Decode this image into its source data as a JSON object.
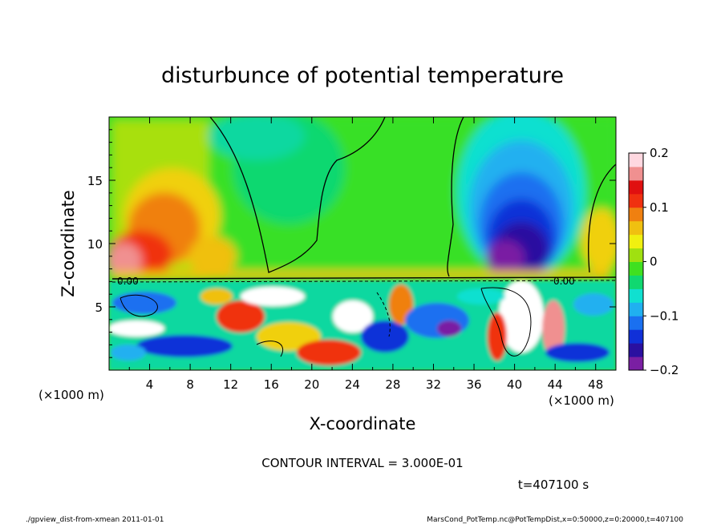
{
  "chart_data": {
    "type": "heatmap",
    "title": "disturbunce of potential temperature",
    "xlabel": "X-coordinate",
    "ylabel": "Z-coordinate",
    "x_unit_label": "(×1000 m)",
    "z_unit_label": "(×1000 m)",
    "xlim": [
      0,
      50
    ],
    "ylim": [
      0,
      20
    ],
    "x_ticks": [
      4,
      8,
      12,
      16,
      20,
      24,
      28,
      32,
      36,
      40,
      44,
      48
    ],
    "y_ticks": [
      5,
      10,
      15
    ],
    "colorbar": {
      "range": [
        -0.2,
        0.2
      ],
      "tick_labels": [
        "0.2",
        "0.1",
        "0",
        "−0.1",
        "−0.2"
      ],
      "tick_values": [
        0.2,
        0.1,
        0,
        -0.1,
        -0.2
      ],
      "colors": [
        "#7a1fa3",
        "#2a10a0",
        "#1030d8",
        "#1a70f0",
        "#20b0f0",
        "#10e0d0",
        "#10d870",
        "#40e020",
        "#a0e010",
        "#f0f010",
        "#f0c010",
        "#f08010",
        "#f03010",
        "#e01010",
        "#f09090",
        "#ffd8e0"
      ]
    },
    "contour_interval_text": "CONTOUR INTERVAL = 3.000E-01",
    "time_text": "t=407100 s",
    "contour_label": "0.00"
  },
  "footer": {
    "left": "./gpview_dist-from-xmean  2011-01-01",
    "right": "MarsCond_PotTemp.nc@PotTempDist,x=0:50000,z=0:20000,t=407100"
  }
}
